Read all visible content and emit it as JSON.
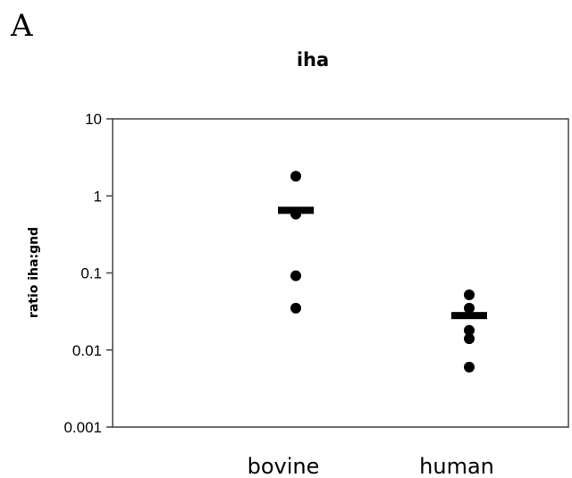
{
  "panel_label": "A",
  "chart_data": {
    "type": "scatter",
    "title": "iha",
    "xlabel": "",
    "ylabel": "ratio iha:gnd",
    "yscale": "log",
    "ylim": [
      0.001,
      10
    ],
    "yticks": [
      {
        "value": 10,
        "label": "10"
      },
      {
        "value": 1,
        "label": "1"
      },
      {
        "value": 0.1,
        "label": "0.1"
      },
      {
        "value": 0.01,
        "label": "0.01"
      },
      {
        "value": 0.001,
        "label": "0.001"
      }
    ],
    "categories": [
      "bovine",
      "human"
    ],
    "points": [
      {
        "category": "bovine",
        "values": [
          1.8,
          0.58,
          0.092,
          0.035
        ],
        "mean": 0.65
      },
      {
        "category": "human",
        "values": [
          0.052,
          0.035,
          0.018,
          0.014,
          0.006
        ],
        "mean": 0.028
      }
    ],
    "grid": false,
    "legend": "none",
    "marker_color": "#000000"
  }
}
